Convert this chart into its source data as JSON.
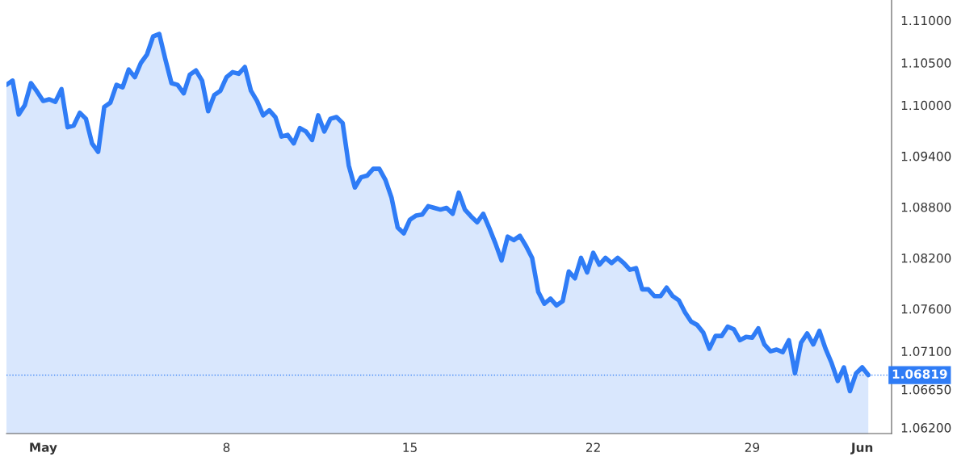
{
  "chart_data": {
    "type": "area",
    "categories": [
      null,
      null,
      null,
      null,
      null,
      null,
      "May",
      null,
      null,
      null,
      null,
      null,
      null,
      null,
      null,
      null,
      null,
      null,
      null,
      null,
      null,
      null,
      null,
      null,
      null,
      null,
      null,
      null,
      null,
      null,
      null,
      null,
      null,
      null,
      null,
      null,
      "8",
      null,
      null,
      null,
      null,
      null,
      null,
      null,
      null,
      null,
      null,
      null,
      null,
      null,
      null,
      null,
      null,
      null,
      null,
      null,
      null,
      null,
      null,
      null,
      null,
      null,
      null,
      null,
      null,
      null,
      "15",
      null,
      null,
      null,
      null,
      null,
      null,
      null,
      null,
      null,
      null,
      null,
      null,
      null,
      null,
      null,
      null,
      null,
      null,
      null,
      null,
      null,
      null,
      null,
      null,
      null,
      null,
      null,
      null,
      null,
      "22",
      null,
      null,
      null,
      null,
      null,
      null,
      null,
      null,
      null,
      null,
      null,
      null,
      null,
      null,
      null,
      null,
      null,
      null,
      null,
      null,
      null,
      null,
      null,
      null,
      null,
      "29",
      null,
      null,
      null,
      null,
      null,
      null,
      null,
      null,
      null,
      null,
      null,
      null,
      null,
      null,
      null,
      null,
      null,
      "Jun",
      null
    ],
    "series": [
      {
        "color": "#2f7cf6",
        "values": [
          1.1024,
          1.1029,
          1.0989,
          1.1,
          1.1026,
          1.1016,
          1.1005,
          1.1007,
          1.1004,
          1.1019,
          1.0974,
          1.0976,
          1.0991,
          1.0984,
          1.0955,
          1.0945,
          1.0998,
          1.1003,
          1.1024,
          1.1021,
          1.1042,
          1.1033,
          1.105,
          1.106,
          1.1081,
          1.1084,
          1.1054,
          1.1026,
          1.1024,
          1.1014,
          1.1036,
          1.1041,
          1.1029,
          1.0993,
          1.1012,
          1.1017,
          1.1033,
          1.1039,
          1.1037,
          1.1045,
          1.1017,
          1.1005,
          1.0988,
          1.0994,
          1.0986,
          1.0963,
          1.0965,
          1.0955,
          1.0973,
          1.0969,
          1.0959,
          1.0988,
          1.0969,
          1.0984,
          1.0986,
          1.0979,
          1.0929,
          1.0903,
          1.0915,
          1.0917,
          1.0925,
          1.0925,
          1.0912,
          1.0891,
          1.0856,
          1.0849,
          1.0865,
          1.087,
          1.0871,
          1.0881,
          1.0879,
          1.0877,
          1.0879,
          1.0872,
          1.0897,
          1.0877,
          1.0869,
          1.0862,
          1.0872,
          1.0855,
          1.0837,
          1.0817,
          1.0845,
          1.0841,
          1.0846,
          1.0834,
          1.082,
          1.078,
          1.0766,
          1.0772,
          1.0764,
          1.0769,
          1.0804,
          1.0796,
          1.082,
          1.0803,
          1.0826,
          1.0812,
          1.082,
          1.0814,
          1.082,
          1.0814,
          1.0806,
          1.0808,
          1.0783,
          1.0783,
          1.0775,
          1.0775,
          1.0785,
          1.0775,
          1.077,
          1.0756,
          1.0745,
          1.0741,
          1.0732,
          1.0713,
          1.0728,
          1.0728,
          1.0739,
          1.0736,
          1.0723,
          1.0727,
          1.0726,
          1.0737,
          1.0718,
          1.071,
          1.0712,
          1.0709,
          1.0723,
          1.0684,
          1.072,
          1.0731,
          1.0718,
          1.0734,
          1.0713,
          1.0696,
          1.0675,
          1.0691,
          1.0663,
          1.0684,
          1.0691,
          1.06819
        ]
      }
    ],
    "ylim": [
      1.0613,
      1.1124
    ],
    "yticks": [
      {
        "value": 1.062,
        "label": "1.06200"
      },
      {
        "value": 1.0665,
        "label": "1.06650"
      },
      {
        "value": 1.071,
        "label": "1.07100"
      },
      {
        "value": 1.076,
        "label": "1.07600"
      },
      {
        "value": 1.082,
        "label": "1.08200"
      },
      {
        "value": 1.088,
        "label": "1.08800"
      },
      {
        "value": 1.094,
        "label": "1.09400"
      },
      {
        "value": 1.1,
        "label": "1.10000"
      },
      {
        "value": 1.105,
        "label": "1.10500"
      },
      {
        "value": 1.11,
        "label": "1.11000"
      }
    ],
    "ref_lines": [
      {
        "axis": "y",
        "value": 1.06819,
        "label": "1.06819",
        "color": "#2f7cf6",
        "line_style": "dotted"
      }
    ],
    "grid": false,
    "legend": false
  }
}
